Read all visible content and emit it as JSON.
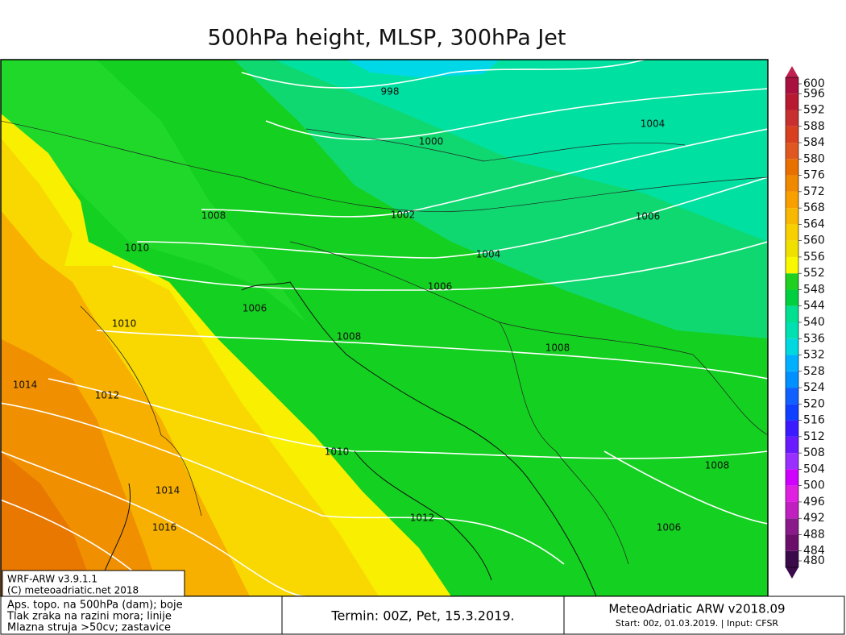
{
  "title": "500hPa height, MLSP, 300hPa Jet",
  "isobar_labels": [
    "998",
    "1000",
    "1004",
    "1002",
    "1006",
    "1008",
    "1010",
    "1004",
    "1006",
    "1006",
    "1008",
    "1008",
    "1010",
    "1014",
    "1012",
    "1010",
    "1014",
    "1016",
    "1012",
    "1008",
    "1006"
  ],
  "colorbar": {
    "levels": [
      480,
      484,
      488,
      492,
      496,
      500,
      504,
      508,
      512,
      516,
      520,
      524,
      528,
      532,
      536,
      540,
      544,
      548,
      552,
      556,
      560,
      564,
      568,
      572,
      576,
      580,
      584,
      588,
      592,
      596,
      600
    ],
    "colors": [
      "#3a0a4a",
      "#6b0f6b",
      "#8a1a8a",
      "#c020c0",
      "#e020e0",
      "#d000ff",
      "#9a30ff",
      "#6a1aff",
      "#3c1aff",
      "#1040ff",
      "#1060ff",
      "#0090ff",
      "#00b0ff",
      "#00d8e0",
      "#00e0b0",
      "#00e090",
      "#00d040",
      "#20d020",
      "#f8f800",
      "#f0e000",
      "#f8d000",
      "#f8b800",
      "#f8a000",
      "#f08800",
      "#e87000",
      "#e05820",
      "#d84020",
      "#c83030",
      "#b81830",
      "#a81040",
      "#c02050"
    ]
  },
  "model_box": {
    "version": "WRF-ARW v3.9.1.1",
    "copyright": "(C) meteoadriatic.net 2018"
  },
  "footer": {
    "description": [
      "Aps. topo. na 500hPa (dam); boje",
      "Tlak zraka na razini mora; linije",
      "Mlazna struja >50cv; zastavice"
    ],
    "valid_time": "Termin: 00Z, Pet, 15.3.2019.",
    "product": "MeteoAdriatic ARW v2018.09",
    "run_info": "Start: 00z, 01.03.2019. | Input: CFSR"
  }
}
